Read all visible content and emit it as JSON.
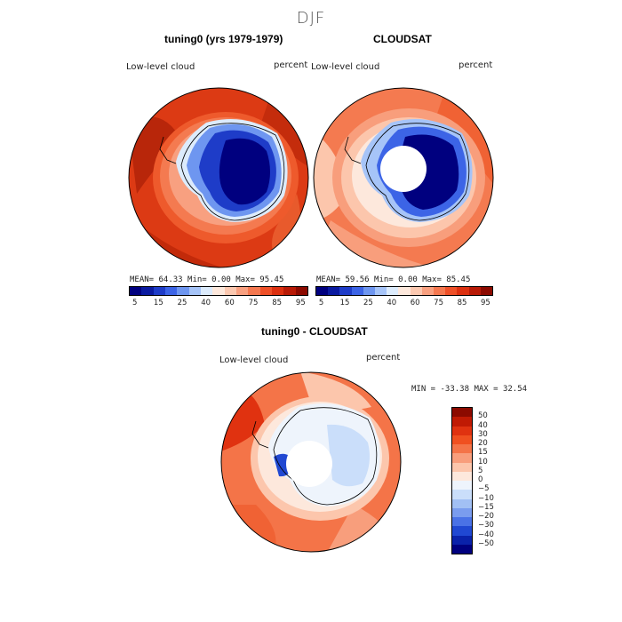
{
  "season": "DJF",
  "panels": [
    {
      "title": "tuning0 (yrs 1979-1979)",
      "label_left": "Low-level cloud",
      "label_right": "percent",
      "stats": "MEAN=  64.33  Min=   0.00  Max=  95.45"
    },
    {
      "title": "CLOUDSAT",
      "label_left": "Low-level cloud",
      "label_right": "percent",
      "stats": "MEAN=  59.56  Min=   0.00  Max=  85.45"
    },
    {
      "title": "tuning0 - CLOUDSAT",
      "label_left": "Low-level cloud",
      "label_right": "percent",
      "stats": "MIN = -33.38 MAX =  32.54"
    }
  ],
  "colorbar_abs": {
    "colors": [
      "#00007f",
      "#0a1aa0",
      "#1e3cc8",
      "#3c64e6",
      "#6e96f0",
      "#a6c4f8",
      "#dcebfc",
      "#fde8dc",
      "#fbc8b0",
      "#f8a080",
      "#f47850",
      "#ee5028",
      "#dc3010",
      "#b81a06",
      "#8c0a00"
    ],
    "ticks": [
      "5",
      "15",
      "25",
      "40",
      "60",
      "75",
      "85",
      "95"
    ]
  },
  "colorbar_diff": {
    "colors": [
      "#8c0a00",
      "#c01a04",
      "#e03210",
      "#f05020",
      "#f47448",
      "#f89e7c",
      "#fcc6ac",
      "#fde8dc",
      "#eef4fc",
      "#cadefa",
      "#a2c0f4",
      "#7a9cee",
      "#4a72e6",
      "#2048d2",
      "#0a22aa",
      "#00007f"
    ],
    "ticks": [
      "50",
      "40",
      "30",
      "20",
      "15",
      "10",
      "5",
      "0",
      "−5",
      "−10",
      "−15",
      "−20",
      "−30",
      "−40",
      "−50"
    ]
  }
}
